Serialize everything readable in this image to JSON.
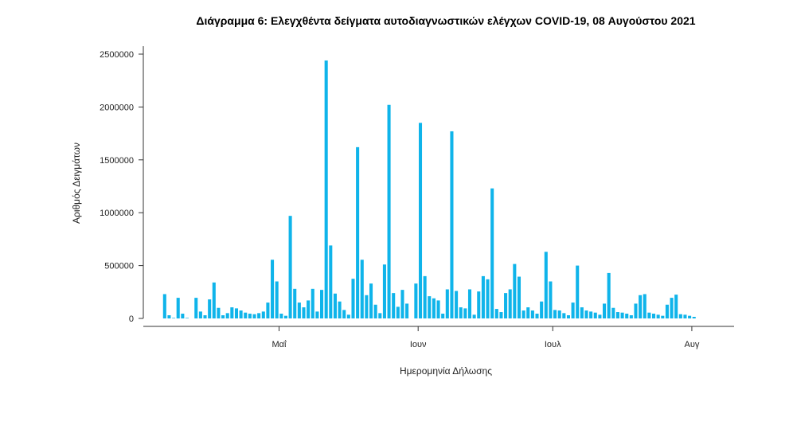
{
  "chart_data": {
    "type": "bar",
    "title": "Διάγραμμα 6: Ελεγχθέντα δείγματα αυτοδιαγνωστικών ελέγχων COVID-19, 08 Αυγούστου 2021",
    "xlabel": "Ημερομηνία Δήλωσης",
    "ylabel": "Αριθμός Δειγμάτων",
    "ylim": [
      0,
      2500000
    ],
    "yticks": [
      0,
      500000,
      1000000,
      1500000,
      2000000,
      2500000
    ],
    "x_start": "2021-04-05",
    "x_end": "2021-08-08",
    "xticks": [
      {
        "date": "2021-05-01",
        "label": "Μαΐ"
      },
      {
        "date": "2021-06-01",
        "label": "Ιουν"
      },
      {
        "date": "2021-07-01",
        "label": "Ιουλ"
      },
      {
        "date": "2021-08-01",
        "label": "Αυγ"
      }
    ],
    "color": "#0fb4ea",
    "values": [
      230000,
      30000,
      5000,
      195000,
      45000,
      5000,
      0,
      195000,
      65000,
      30000,
      180000,
      340000,
      100000,
      30000,
      50000,
      105000,
      95000,
      75000,
      55000,
      45000,
      40000,
      50000,
      65000,
      150000,
      555000,
      350000,
      45000,
      25000,
      970000,
      280000,
      150000,
      105000,
      170000,
      280000,
      65000,
      270000,
      2440000,
      690000,
      235000,
      160000,
      80000,
      35000,
      375000,
      1620000,
      555000,
      220000,
      330000,
      130000,
      50000,
      510000,
      2020000,
      240000,
      110000,
      270000,
      140000,
      0,
      330000,
      1850000,
      400000,
      210000,
      190000,
      170000,
      45000,
      275000,
      1770000,
      260000,
      105000,
      95000,
      275000,
      35000,
      255000,
      400000,
      370000,
      1230000,
      90000,
      60000,
      240000,
      275000,
      515000,
      395000,
      75000,
      105000,
      75000,
      45000,
      160000,
      630000,
      350000,
      80000,
      75000,
      50000,
      30000,
      150000,
      500000,
      105000,
      75000,
      65000,
      55000,
      35000,
      140000,
      430000,
      100000,
      60000,
      55000,
      45000,
      30000,
      140000,
      220000,
      230000,
      55000,
      45000,
      35000,
      25000,
      130000,
      195000,
      225000,
      40000,
      35000,
      25000,
      15000
    ]
  }
}
